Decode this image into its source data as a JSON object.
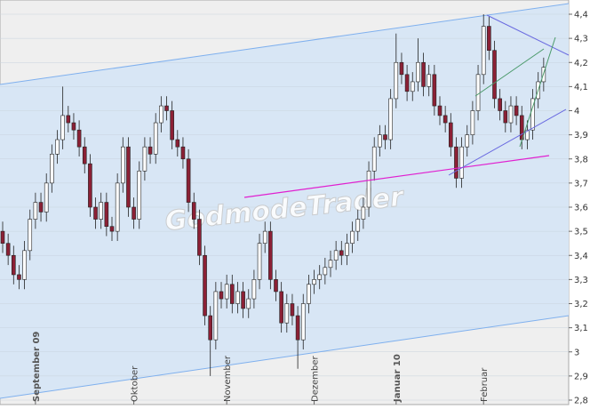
{
  "chart_data": {
    "type": "candlestick",
    "watermark": "GodmodeTrader",
    "categories": [
      null,
      null,
      null,
      null,
      null,
      null,
      "September 09",
      null,
      null,
      null,
      null,
      null,
      null,
      null,
      null,
      null,
      null,
      null,
      null,
      null,
      null,
      null,
      null,
      null,
      "Oktober",
      null,
      null,
      null,
      null,
      null,
      null,
      null,
      null,
      null,
      null,
      null,
      null,
      null,
      null,
      null,
      null,
      "November",
      null,
      null,
      null,
      null,
      null,
      null,
      null,
      null,
      null,
      null,
      null,
      null,
      null,
      null,
      null,
      "Dezember",
      null,
      null,
      null,
      null,
      null,
      null,
      null,
      null,
      null,
      null,
      null,
      null,
      null,
      null,
      "Januar 10",
      null,
      null,
      null,
      null,
      null,
      null,
      null,
      null,
      null,
      null,
      null,
      null,
      null,
      null,
      null,
      "Februar",
      null,
      null,
      null,
      null,
      null,
      null,
      null,
      null,
      null,
      null,
      null
    ],
    "open": [
      3.5,
      3.45,
      3.4,
      3.32,
      3.3,
      3.42,
      3.55,
      3.62,
      3.58,
      3.7,
      3.82,
      3.88,
      3.98,
      3.95,
      3.92,
      3.85,
      3.78,
      3.6,
      3.55,
      3.62,
      3.52,
      3.5,
      3.7,
      3.85,
      3.6,
      3.55,
      3.75,
      3.85,
      3.82,
      3.95,
      4.02,
      4.0,
      3.88,
      3.85,
      3.8,
      3.62,
      3.55,
      3.4,
      3.15,
      3.05,
      3.25,
      3.22,
      3.28,
      3.2,
      3.25,
      3.18,
      3.22,
      3.3,
      3.45,
      3.5,
      3.3,
      3.25,
      3.12,
      3.2,
      3.15,
      3.05,
      3.2,
      3.28,
      3.3,
      3.32,
      3.35,
      3.38,
      3.42,
      3.4,
      3.45,
      3.5,
      3.55,
      3.6,
      3.75,
      3.85,
      3.9,
      3.88,
      4.05,
      4.2,
      4.15,
      4.08,
      4.12,
      4.2,
      4.1,
      4.15,
      4.02,
      3.98,
      3.95,
      3.85,
      3.72,
      3.85,
      3.9,
      4.0,
      4.15,
      4.35,
      4.25,
      4.05,
      4.0,
      3.95,
      4.02,
      3.98,
      3.88,
      3.92,
      4.05,
      4.12
    ],
    "high": [
      3.54,
      3.49,
      3.44,
      3.36,
      3.46,
      3.59,
      3.66,
      3.66,
      3.74,
      3.86,
      3.92,
      4.1,
      4.02,
      3.99,
      3.96,
      3.89,
      3.82,
      3.64,
      3.66,
      3.66,
      3.56,
      3.74,
      3.89,
      3.89,
      3.64,
      3.79,
      3.89,
      3.89,
      3.99,
      4.06,
      4.06,
      4.04,
      3.92,
      3.89,
      3.84,
      3.66,
      3.59,
      3.44,
      3.19,
      3.29,
      3.29,
      3.32,
      3.32,
      3.29,
      3.29,
      3.26,
      3.34,
      3.49,
      3.54,
      3.54,
      3.34,
      3.29,
      3.24,
      3.24,
      3.19,
      3.24,
      3.32,
      3.34,
      3.36,
      3.39,
      3.42,
      3.46,
      3.46,
      3.49,
      3.54,
      3.59,
      3.64,
      3.79,
      3.89,
      3.94,
      3.94,
      4.09,
      4.32,
      4.24,
      4.19,
      4.16,
      4.3,
      4.24,
      4.19,
      4.19,
      4.06,
      4.02,
      3.99,
      3.89,
      3.89,
      3.94,
      4.04,
      4.19,
      4.4,
      4.39,
      4.29,
      4.09,
      4.04,
      4.06,
      4.06,
      4.02,
      3.96,
      4.09,
      4.16,
      4.22
    ],
    "low": [
      3.41,
      3.36,
      3.28,
      3.26,
      3.26,
      3.38,
      3.51,
      3.54,
      3.54,
      3.66,
      3.78,
      3.84,
      3.91,
      3.88,
      3.81,
      3.74,
      3.56,
      3.51,
      3.51,
      3.48,
      3.46,
      3.46,
      3.66,
      3.56,
      3.51,
      3.51,
      3.71,
      3.78,
      3.78,
      3.91,
      3.96,
      3.84,
      3.81,
      3.76,
      3.58,
      3.51,
      3.36,
      3.11,
      2.9,
      3.01,
      3.18,
      3.18,
      3.16,
      3.16,
      3.14,
      3.14,
      3.18,
      3.26,
      3.41,
      3.26,
      3.21,
      3.08,
      3.08,
      3.11,
      2.93,
      3.01,
      3.16,
      3.24,
      3.26,
      3.28,
      3.31,
      3.34,
      3.36,
      3.36,
      3.41,
      3.46,
      3.51,
      3.56,
      3.71,
      3.81,
      3.84,
      3.84,
      4.01,
      4.11,
      4.04,
      4.04,
      4.08,
      4.06,
      4.06,
      3.98,
      3.94,
      3.91,
      3.81,
      3.68,
      3.68,
      3.81,
      3.86,
      3.96,
      4.11,
      4.21,
      4.01,
      3.96,
      3.91,
      3.91,
      3.94,
      3.84,
      3.84,
      3.88,
      4.01,
      4.08
    ],
    "close": [
      3.45,
      3.4,
      3.32,
      3.3,
      3.42,
      3.55,
      3.62,
      3.58,
      3.7,
      3.82,
      3.88,
      3.98,
      3.95,
      3.92,
      3.85,
      3.78,
      3.6,
      3.55,
      3.62,
      3.52,
      3.5,
      3.7,
      3.85,
      3.6,
      3.55,
      3.75,
      3.85,
      3.82,
      3.95,
      4.02,
      4.0,
      3.88,
      3.85,
      3.8,
      3.62,
      3.55,
      3.4,
      3.15,
      3.05,
      3.25,
      3.22,
      3.28,
      3.2,
      3.25,
      3.18,
      3.22,
      3.3,
      3.45,
      3.5,
      3.3,
      3.25,
      3.12,
      3.2,
      3.15,
      3.05,
      3.2,
      3.28,
      3.3,
      3.32,
      3.35,
      3.38,
      3.42,
      3.4,
      3.45,
      3.5,
      3.55,
      3.6,
      3.75,
      3.85,
      3.9,
      3.88,
      4.05,
      4.2,
      4.15,
      4.08,
      4.12,
      4.2,
      4.1,
      4.15,
      4.02,
      3.98,
      3.95,
      3.85,
      3.72,
      3.85,
      3.9,
      4.0,
      4.15,
      4.35,
      4.25,
      4.05,
      4.0,
      3.95,
      4.02,
      3.98,
      3.88,
      3.92,
      4.05,
      4.12,
      4.18
    ],
    "up_color": "#ffffff",
    "down_color": "#8b2035",
    "ylim": [
      2.8,
      4.4
    ],
    "yticks": [
      {
        "value": 2.8,
        "label": "2,8"
      },
      {
        "value": 2.9,
        "label": "2,9"
      },
      3,
      {
        "value": 3.1,
        "label": "3,1"
      },
      {
        "value": 3.2,
        "label": "3,2"
      },
      {
        "value": 3.3,
        "label": "3,3"
      },
      {
        "value": 3.4,
        "label": "3,4"
      },
      {
        "value": 3.5,
        "label": "3,5"
      },
      {
        "value": 3.6,
        "label": "3,6"
      },
      {
        "value": 3.7,
        "label": "3,7"
      },
      {
        "value": 3.8,
        "label": "3,8"
      },
      {
        "value": 3.9,
        "label": "3,9"
      },
      4,
      {
        "value": 4.1,
        "label": "4,1"
      },
      {
        "value": 4.2,
        "label": "4,2"
      },
      {
        "value": 4.3,
        "label": "4,3"
      },
      {
        "value": 4.4,
        "label": "4,4"
      }
    ],
    "grid": true
  }
}
